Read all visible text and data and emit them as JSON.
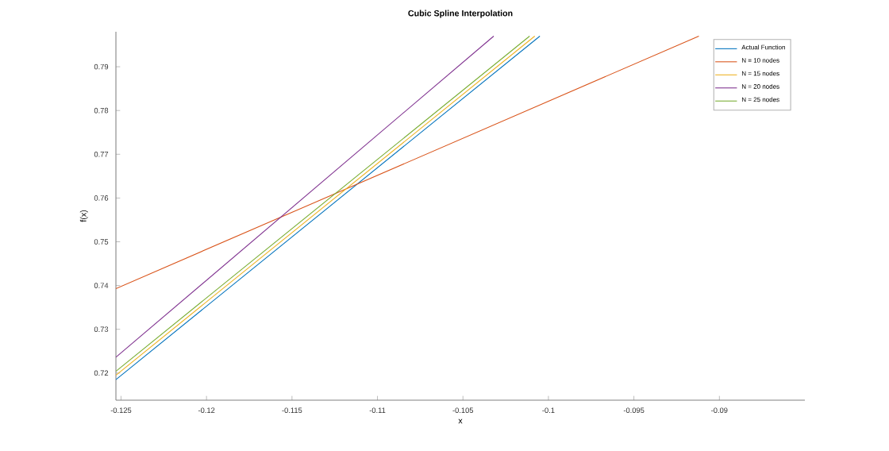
{
  "chart_data": {
    "type": "line",
    "title": "Cubic Spline Interpolation",
    "xlabel": "x",
    "ylabel": "f(x)",
    "xlim": [
      -0.1253,
      -0.085
    ],
    "ylim": [
      0.7138,
      0.798
    ],
    "xticks": [
      -0.125,
      -0.12,
      -0.115,
      -0.11,
      -0.105,
      -0.1,
      -0.095,
      -0.09
    ],
    "yticks": [
      0.72,
      0.73,
      0.74,
      0.75,
      0.76,
      0.77,
      0.78,
      0.79
    ],
    "legend": "top right",
    "grid": false,
    "marker": "none",
    "line_style": "solid",
    "series": [
      {
        "name": "Actual Function",
        "color": "#0072bd",
        "x": [
          -0.1253,
          -0.1005
        ],
        "values": [
          0.7185,
          0.797
        ]
      },
      {
        "name": "N = 10 nodes",
        "color": "#d95319",
        "x": [
          -0.1253,
          -0.0912
        ],
        "values": [
          0.7393,
          0.797
        ]
      },
      {
        "name": "N = 15 nodes",
        "color": "#edb120",
        "x": [
          -0.1253,
          -0.1008
        ],
        "values": [
          0.7195,
          0.797
        ]
      },
      {
        "name": "N = 20 nodes",
        "color": "#7e2f8e",
        "x": [
          -0.1253,
          -0.1032
        ],
        "values": [
          0.7236,
          0.797
        ]
      },
      {
        "name": "N = 25 nodes",
        "color": "#77ac30",
        "x": [
          -0.1253,
          -0.1011
        ],
        "values": [
          0.7204,
          0.797
        ]
      }
    ]
  }
}
